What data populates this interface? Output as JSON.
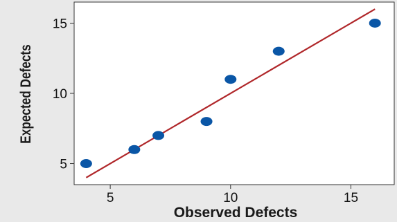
{
  "chart_data": {
    "type": "scatter",
    "title": "",
    "xlabel": "Observed Defects",
    "ylabel": "Expected Defects",
    "xlim": [
      3.5,
      16.8
    ],
    "ylim": [
      3.5,
      16.5
    ],
    "x_ticks": [
      5,
      10,
      15
    ],
    "y_ticks": [
      5,
      10,
      15
    ],
    "points": [
      {
        "x": 4,
        "y": 5
      },
      {
        "x": 6,
        "y": 6
      },
      {
        "x": 7,
        "y": 7
      },
      {
        "x": 9,
        "y": 8
      },
      {
        "x": 10,
        "y": 11
      },
      {
        "x": 12,
        "y": 13
      },
      {
        "x": 16,
        "y": 15
      }
    ],
    "reference_line": {
      "x1": 4,
      "y1": 4,
      "x2": 16,
      "y2": 16
    },
    "grid": false,
    "colors": {
      "background": "#e9e9e9",
      "plot_area": "#ffffff",
      "points": "#0a56a6",
      "reference_line": "#b0272a",
      "axis": "#333333"
    }
  }
}
